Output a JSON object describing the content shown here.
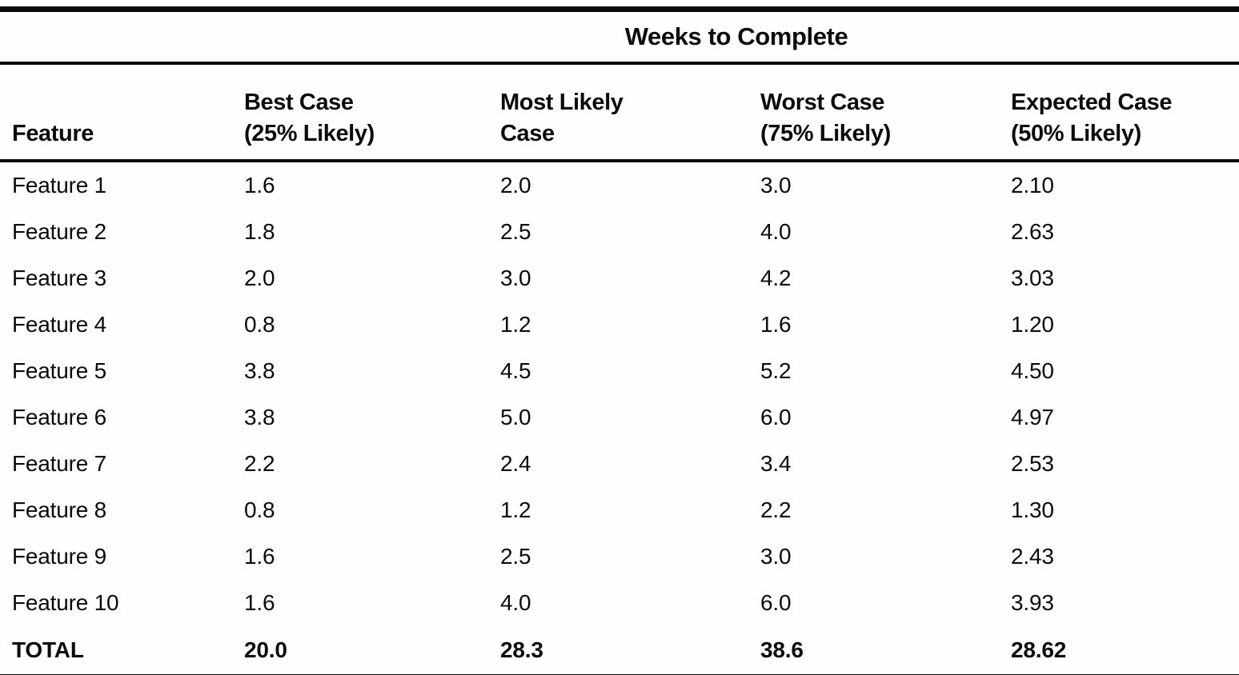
{
  "table": {
    "title": "Weeks to Complete",
    "columns": [
      {
        "label": "Feature"
      },
      {
        "label": "Best Case\n(25% Likely)"
      },
      {
        "label": "Most Likely\nCase"
      },
      {
        "label": "Worst Case\n(75% Likely)"
      },
      {
        "label": "Expected Case\n(50% Likely)"
      }
    ],
    "rows": [
      {
        "feature": "Feature 1",
        "best": "1.6",
        "likely": "2.0",
        "worst": "3.0",
        "expected": "2.10"
      },
      {
        "feature": "Feature 2",
        "best": "1.8",
        "likely": "2.5",
        "worst": "4.0",
        "expected": "2.63"
      },
      {
        "feature": "Feature 3",
        "best": "2.0",
        "likely": "3.0",
        "worst": "4.2",
        "expected": "3.03"
      },
      {
        "feature": "Feature 4",
        "best": "0.8",
        "likely": "1.2",
        "worst": "1.6",
        "expected": "1.20"
      },
      {
        "feature": "Feature 5",
        "best": "3.8",
        "likely": "4.5",
        "worst": "5.2",
        "expected": "4.50"
      },
      {
        "feature": "Feature 6",
        "best": "3.8",
        "likely": "5.0",
        "worst": "6.0",
        "expected": "4.97"
      },
      {
        "feature": "Feature 7",
        "best": "2.2",
        "likely": "2.4",
        "worst": "3.4",
        "expected": "2.53"
      },
      {
        "feature": "Feature 8",
        "best": "0.8",
        "likely": "1.2",
        "worst": "2.2",
        "expected": "1.30"
      },
      {
        "feature": "Feature 9",
        "best": "1.6",
        "likely": "2.5",
        "worst": "3.0",
        "expected": "2.43"
      },
      {
        "feature": "Feature 10",
        "best": "1.6",
        "likely": "4.0",
        "worst": "6.0",
        "expected": "3.93"
      }
    ],
    "total": {
      "feature": "TOTAL",
      "best": "20.0",
      "likely": "28.3",
      "worst": "38.6",
      "expected": "28.62"
    },
    "colors": {
      "ink": "#0a0a0a",
      "paper": "#ffffff"
    }
  }
}
